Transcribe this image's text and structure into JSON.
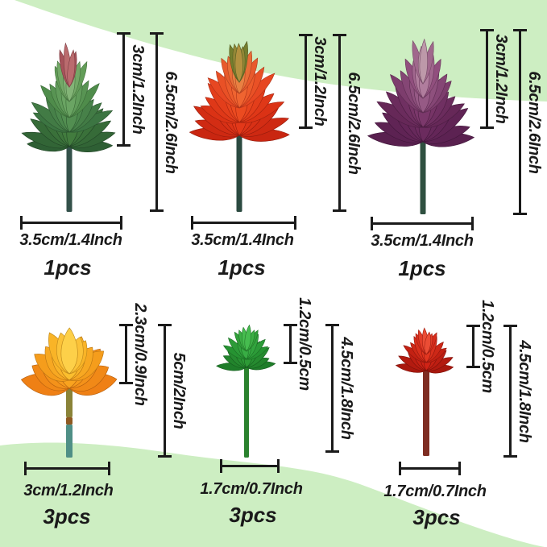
{
  "page": {
    "description": "Artificial succulent flower picks size infographic, six flowers with cm/inch dimension callouts"
  },
  "colors": {
    "band": "#cdeec2",
    "line": "#1a1a1a",
    "text": "#1a1a1a",
    "canvas": "#ffffff"
  },
  "flowers": [
    {
      "id": "large-green-succulent",
      "description": "large green succulent pick with red tips",
      "flower_height_label": "3cm/1.2Inch",
      "total_height_label": "6.5cm/2.6Inch",
      "width_label": "3.5cm/1.4Inch",
      "pcs_label": "1pcs",
      "stem_colors": [
        "#33514a"
      ],
      "petal_layers": [
        [
          "#2c5c33",
          "#44803f"
        ],
        [
          "#3a7240",
          "#559253"
        ],
        [
          "#4c8a48",
          "#6fa968"
        ],
        [
          "#5f9a55",
          "#8cba7f"
        ],
        [
          "#a45058",
          "#c47878"
        ]
      ]
    },
    {
      "id": "large-red-succulent",
      "description": "large red-orange succulent pick with olive crown",
      "flower_height_label": "3cm/1.2Inch",
      "total_height_label": "6.5cm/2.6Inch",
      "width_label": "3.5cm/1.4Inch",
      "pcs_label": "1pcs",
      "stem_colors": [
        "#2b4a40"
      ],
      "petal_layers": [
        [
          "#c62410",
          "#e63a1a"
        ],
        [
          "#d92f14",
          "#ee4f22"
        ],
        [
          "#e64420",
          "#f06a33"
        ],
        [
          "#e8562a",
          "#e98a48"
        ],
        [
          "#6f7c2c",
          "#b3913f"
        ]
      ]
    },
    {
      "id": "large-purple-succulent",
      "description": "large purple artichoke-style succulent pick",
      "flower_height_label": "3cm/1.2Inch",
      "total_height_label": "6.5cm/2.6Inch",
      "width_label": "3.5cm/1.4Inch",
      "pcs_label": "1pcs",
      "stem_colors": [
        "#2f5040"
      ],
      "petal_layers": [
        [
          "#571f4e",
          "#6d2c60"
        ],
        [
          "#642656",
          "#7e3a6e"
        ],
        [
          "#7a3a6a",
          "#9b5f8a"
        ],
        [
          "#8d4a7a",
          "#b98aa6"
        ],
        [
          "#9c6288",
          "#cdb3b9"
        ]
      ]
    },
    {
      "id": "small-orange-flower",
      "description": "small orange-yellow open flower pick",
      "flower_height_label": "2.3cm/0.9Inch",
      "total_height_label": "5cm/2Inch",
      "width_label": "3cm/1.2Inch",
      "pcs_label": "3pcs",
      "stem_colors": [
        "#8a8338",
        "#8f5a22",
        "#4f8f86"
      ],
      "petal_layers": [
        [
          "#ee7d14",
          "#f9a41f"
        ],
        [
          "#f59a1a",
          "#fbbf2e"
        ],
        [
          "#f9b224",
          "#fdd14a"
        ]
      ]
    },
    {
      "id": "mini-green-succulent",
      "description": "mini green spiky succulent pick",
      "flower_height_label": "1.2cm/0.5cm",
      "total_height_label": "4.5cm/1.8Inch",
      "width_label": "1.7cm/0.7Inch",
      "pcs_label": "3pcs",
      "stem_colors": [
        "#2a822e"
      ],
      "petal_layers": [
        [
          "#1d7a28",
          "#2f9e38"
        ],
        [
          "#249030",
          "#3cb247"
        ],
        [
          "#2f9e38",
          "#4cc455"
        ]
      ]
    },
    {
      "id": "mini-red-succulent",
      "description": "mini red spiky succulent pick",
      "flower_height_label": "1.2cm/0.5cm",
      "total_height_label": "4.5cm/1.8Inch",
      "width_label": "1.7cm/0.7Inch",
      "pcs_label": "3pcs",
      "stem_colors": [
        "#7e2d22"
      ],
      "petal_layers": [
        [
          "#a5170d",
          "#d62517"
        ],
        [
          "#c01f12",
          "#e83a22"
        ],
        [
          "#d62919",
          "#f0563c"
        ]
      ]
    }
  ]
}
